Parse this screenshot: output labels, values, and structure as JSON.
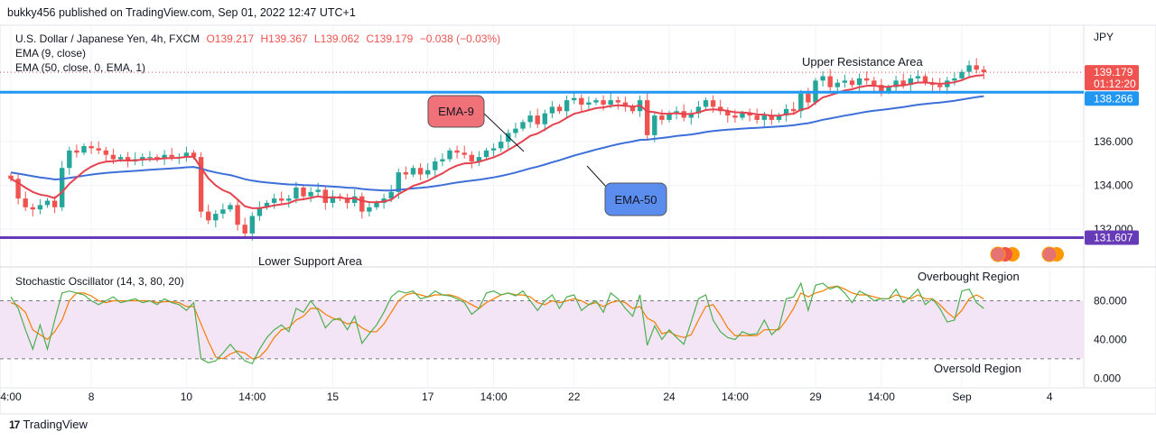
{
  "header": {
    "publisher_line": "bukky456 published on TradingView.com, Sep 01, 2022 12:47 UTC+1"
  },
  "footer": {
    "brand": "TradingView",
    "logo_glyph": "17"
  },
  "colors": {
    "up": "#26a69a",
    "down": "#ef5350",
    "ema9": "#e5414e",
    "ema50": "#3d6fd9",
    "resistance": "#2196f3",
    "support": "#673ab7",
    "k": "#4caf50",
    "d": "#f57c00",
    "band": "#f3e5f5"
  },
  "legend": {
    "symbol": "U.S. Dollar / Japanese Yen, 4h, FXCM",
    "o": "O139.217",
    "h": "H139.367",
    "l": "L139.062",
    "c": "C139.179",
    "change": "−0.038 (−0.03%)",
    "ema9_label": "EMA (9, close)",
    "ema50_label": "EMA (50, close, 0, EMA, 1)"
  },
  "chart_data": [
    {
      "type": "candlestick",
      "title": "U.S. Dollar / Japanese Yen, 4h, FXCM",
      "currency": "JPY",
      "y_ticks": [
        "132.000",
        "134.000",
        "136.000"
      ],
      "ylim": [
        130.35,
        141.25
      ],
      "last_price": "139.179",
      "countdown": "01:12:20",
      "x_ticks": [
        {
          "i": 0,
          "label": "4:00"
        },
        {
          "i": 11,
          "label": "8"
        },
        {
          "i": 24,
          "label": "10"
        },
        {
          "i": 33,
          "label": "14:00"
        },
        {
          "i": 44,
          "label": "15"
        },
        {
          "i": 57,
          "label": "17"
        },
        {
          "i": 66,
          "label": "14:00"
        },
        {
          "i": 77,
          "label": "22"
        },
        {
          "i": 90,
          "label": "24"
        },
        {
          "i": 99,
          "label": "14:00"
        },
        {
          "i": 110,
          "label": "29"
        },
        {
          "i": 119,
          "label": "14:00"
        },
        {
          "i": 130,
          "label": "Sep"
        },
        {
          "i": 142,
          "label": "4"
        }
      ],
      "closes": [
        134.3,
        133.4,
        133.0,
        132.9,
        133.1,
        133.3,
        133.0,
        134.8,
        135.6,
        135.5,
        135.8,
        135.7,
        135.6,
        135.4,
        135.2,
        135.3,
        135.1,
        135.2,
        135.3,
        135.3,
        135.2,
        135.4,
        135.3,
        135.3,
        135.5,
        135.3,
        132.8,
        132.4,
        132.7,
        132.9,
        133.1,
        132.2,
        131.8,
        132.6,
        133.0,
        133.2,
        133.4,
        133.3,
        133.4,
        133.9,
        133.5,
        133.7,
        133.8,
        133.2,
        133.5,
        133.4,
        133.2,
        133.5,
        132.8,
        133.0,
        133.2,
        133.4,
        133.7,
        134.6,
        134.5,
        134.8,
        134.5,
        134.7,
        135.1,
        135.2,
        135.6,
        135.5,
        135.4,
        135.1,
        135.3,
        135.6,
        135.7,
        136.0,
        136.4,
        136.6,
        136.9,
        137.2,
        136.8,
        137.3,
        137.6,
        137.4,
        137.9,
        138.0,
        137.7,
        137.8,
        137.9,
        137.7,
        137.9,
        137.8,
        137.6,
        137.4,
        137.9,
        136.3,
        137.2,
        137.0,
        137.3,
        137.4,
        137.1,
        137.3,
        137.6,
        137.9,
        137.6,
        137.4,
        137.2,
        137.1,
        137.3,
        137.2,
        137.0,
        137.2,
        137.0,
        137.2,
        137.5,
        137.4,
        138.2,
        137.8,
        138.8,
        139.0,
        138.5,
        138.7,
        138.8,
        138.6,
        138.9,
        138.8,
        138.6,
        138.3,
        138.5,
        138.8,
        138.6,
        138.9,
        139.0,
        138.7,
        138.6,
        138.5,
        138.8,
        138.9,
        139.2,
        139.5,
        139.3,
        139.179
      ],
      "ema9_label_text": "EMA-9",
      "ema50_label_text": "EMA-50",
      "resistance_level": 138.266,
      "resistance_label": "138.266",
      "support_level": 131.607,
      "support_label": "131.607",
      "annotations": [
        "Upper Resistance Area",
        "Lower Support Area"
      ]
    },
    {
      "type": "line",
      "title": "Stochastic Oscillator (14, 3, 80, 20)",
      "y_ticks": [
        "0.000",
        "40.000",
        "80.000"
      ],
      "ylim": [
        -8,
        113
      ],
      "band": [
        20,
        80
      ],
      "k_values": [
        84,
        72,
        50,
        30,
        55,
        30,
        60,
        88,
        90,
        88,
        86,
        80,
        76,
        80,
        84,
        78,
        80,
        82,
        78,
        80,
        76,
        82,
        78,
        76,
        70,
        78,
        20,
        16,
        18,
        26,
        35,
        26,
        18,
        15,
        30,
        42,
        50,
        55,
        48,
        72,
        68,
        80,
        70,
        52,
        60,
        62,
        50,
        64,
        36,
        46,
        55,
        68,
        84,
        90,
        88,
        90,
        82,
        84,
        90,
        86,
        85,
        82,
        78,
        66,
        72,
        88,
        90,
        86,
        88,
        85,
        90,
        80,
        70,
        80,
        86,
        72,
        84,
        86,
        70,
        76,
        80,
        68,
        88,
        82,
        72,
        64,
        86,
        34,
        54,
        40,
        50,
        42,
        35,
        58,
        82,
        86,
        60,
        48,
        42,
        40,
        48,
        45,
        46,
        60,
        45,
        52,
        82,
        84,
        98,
        70,
        96,
        98,
        92,
        95,
        88,
        78,
        90,
        86,
        80,
        82,
        82,
        92,
        78,
        84,
        92,
        76,
        82,
        72,
        58,
        60,
        90,
        92,
        78,
        72
      ],
      "d_values": [
        78,
        75,
        68,
        50,
        45,
        40,
        48,
        60,
        80,
        88,
        88,
        85,
        80,
        78,
        80,
        80,
        80,
        80,
        80,
        80,
        78,
        79,
        79,
        78,
        74,
        74,
        56,
        38,
        22,
        20,
        25,
        28,
        26,
        20,
        22,
        30,
        42,
        50,
        52,
        60,
        64,
        72,
        72,
        66,
        62,
        60,
        56,
        58,
        52,
        48,
        48,
        56,
        68,
        80,
        86,
        88,
        86,
        84,
        86,
        86,
        86,
        84,
        80,
        76,
        72,
        78,
        82,
        86,
        88,
        86,
        86,
        84,
        78,
        76,
        80,
        78,
        80,
        82,
        80,
        76,
        78,
        74,
        78,
        80,
        78,
        72,
        74,
        62,
        58,
        46,
        48,
        44,
        42,
        45,
        60,
        74,
        76,
        65,
        52,
        44,
        44,
        44,
        44,
        50,
        50,
        50,
        60,
        72,
        88,
        84,
        88,
        90,
        94,
        95,
        92,
        88,
        86,
        86,
        84,
        82,
        82,
        86,
        84,
        82,
        86,
        82,
        82,
        76,
        68,
        62,
        70,
        82,
        86,
        82
      ],
      "annotations": [
        "Overbought Region",
        "Oversold Region"
      ]
    }
  ]
}
